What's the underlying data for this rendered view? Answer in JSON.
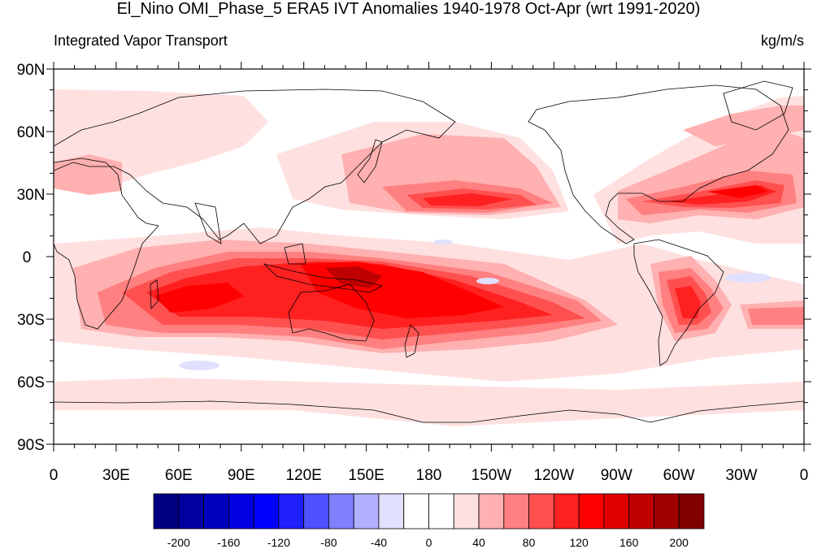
{
  "title": "El_Nino OMI_Phase_5 ERA5 IVT Anomalies 1940-1978 Oct-Apr (wrt 1991-2020)",
  "left_string": "Integrated Vapor Transport",
  "right_string": "kg/m/s",
  "lat_labels": [
    "90N",
    "60N",
    "30N",
    "0",
    "30S",
    "60S",
    "90S"
  ],
  "lon_labels": [
    "0",
    "30E",
    "60E",
    "90E",
    "120E",
    "150E",
    "180",
    "150W",
    "120W",
    "90W",
    "60W",
    "30W",
    "0"
  ],
  "colorbar": {
    "colors": [
      "#000080",
      "#0000a0",
      "#0000c0",
      "#0000e0",
      "#0000ff",
      "#2020ff",
      "#5050ff",
      "#8080ff",
      "#b0b0ff",
      "#e0e0ff",
      "#ffffff",
      "#ffffff",
      "#ffe0e0",
      "#ffb0b0",
      "#ff8080",
      "#ff5050",
      "#ff2020",
      "#ff0000",
      "#e00000",
      "#c00000",
      "#a00000",
      "#800000"
    ],
    "labels": [
      "-200",
      "-160",
      "-120",
      "-80",
      "-40",
      "0",
      "40",
      "80",
      "120",
      "160",
      "200"
    ]
  },
  "colors": {
    "light_pink": "#ffe0e0",
    "pink": "#ffb0b0",
    "salmon": "#ff8080",
    "red_light": "#ff5050",
    "red": "#ff2020",
    "red_strong": "#ff0000",
    "dark_red": "#c00000",
    "light_blue": "#e0e0ff"
  }
}
